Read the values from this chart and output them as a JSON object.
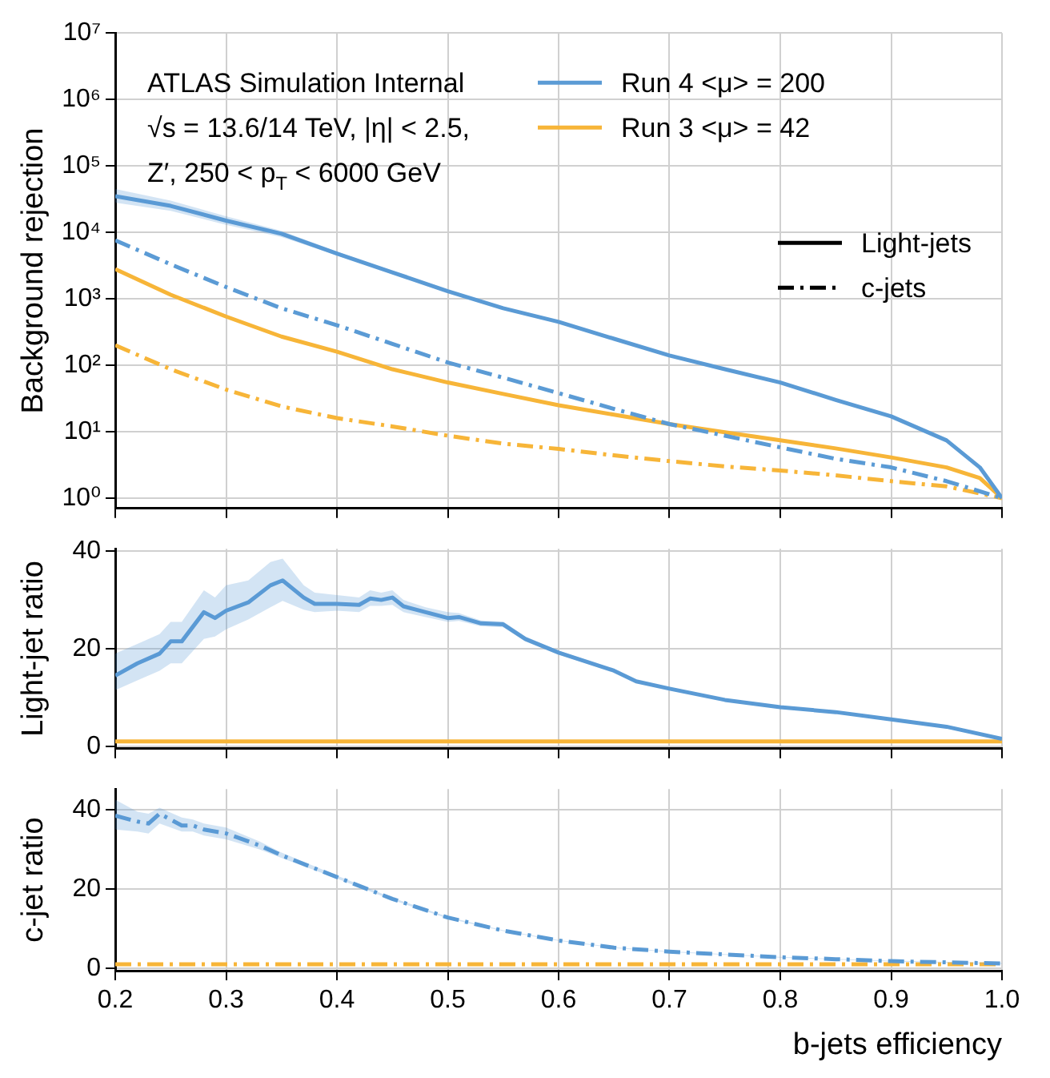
{
  "chart_data": [
    {
      "type": "line",
      "ylabel": "Background rejection",
      "log": "y",
      "grid": true,
      "legend": "top right",
      "tick_labels": "y",
      "xlim": [
        0.2,
        1.0
      ],
      "xticks": [
        0.2,
        0.3,
        0.4,
        0.5,
        0.6,
        0.7,
        0.8,
        0.9,
        1.0
      ],
      "ylim": [
        0.7,
        10000000
      ],
      "yticks": [
        {
          "value": 1,
          "label": "10⁰"
        },
        {
          "value": 10,
          "label": "10¹"
        },
        {
          "value": 100,
          "label": "10²"
        },
        {
          "value": 1000,
          "label": "10³"
        },
        {
          "value": 10000,
          "label": "10⁴"
        },
        {
          "value": 100000,
          "label": "10⁵"
        },
        {
          "value": 1000000,
          "label": "10⁶"
        },
        {
          "value": 10000000,
          "label": "10⁷"
        }
      ],
      "annotations": [
        "ATLAS Simulation Internal",
        "√s = 13.6/14 TeV, |η| < 2.5,",
        "Z′, 250 < p$_{T}$ < 6000 GeV",
        "Light-jets",
        "c-jets"
      ],
      "series": [
        {
          "name": "Run 4 <μ> = 200",
          "color": "#5b9bd5",
          "line_style": "solid",
          "x": [
            0.2,
            0.25,
            0.3,
            0.35,
            0.4,
            0.45,
            0.5,
            0.55,
            0.6,
            0.65,
            0.7,
            0.75,
            0.8,
            0.85,
            0.9,
            0.95,
            0.98,
            1.0
          ],
          "values": [
            35000,
            25000,
            15000,
            9500,
            4800,
            2500,
            1300,
            720,
            450,
            250,
            140,
            87,
            55,
            30,
            17,
            7.4,
            2.9,
            1
          ],
          "lower": [
            28000,
            21000,
            13000,
            8500,
            4500,
            2400,
            1250,
            700,
            440,
            245,
            138,
            86,
            54,
            29.5,
            16.8,
            7.3,
            2.85,
            1
          ],
          "upper": [
            45000,
            30000,
            17500,
            10500,
            5100,
            2600,
            1350,
            740,
            460,
            255,
            142,
            88,
            56,
            30.5,
            17.2,
            7.5,
            2.95,
            1
          ]
        },
        {
          "color": "#5b9bd5",
          "line_style": "dashed",
          "x": [
            0.2,
            0.25,
            0.3,
            0.35,
            0.4,
            0.45,
            0.5,
            0.55,
            0.6,
            0.65,
            0.7,
            0.75,
            0.8,
            0.85,
            0.9,
            0.95,
            1.0
          ],
          "values": [
            7600,
            3300,
            1500,
            720,
            400,
            210,
            110,
            65,
            38,
            22,
            13,
            8.7,
            5.8,
            3.9,
            2.9,
            1.8,
            1
          ]
        },
        {
          "name": "Run 3 <μ> = 42",
          "color": "#f7b538",
          "line_style": "solid",
          "x": [
            0.2,
            0.25,
            0.3,
            0.35,
            0.4,
            0.45,
            0.5,
            0.55,
            0.6,
            0.65,
            0.7,
            0.75,
            0.8,
            0.85,
            0.9,
            0.95,
            0.98,
            1.0
          ],
          "values": [
            2800,
            1150,
            540,
            270,
            160,
            87,
            55,
            37,
            25,
            18,
            13,
            9.8,
            7.4,
            5.6,
            4.1,
            2.9,
            2,
            1
          ]
        },
        {
          "color": "#f7b538",
          "line_style": "dashed",
          "x": [
            0.2,
            0.25,
            0.3,
            0.35,
            0.4,
            0.45,
            0.5,
            0.55,
            0.6,
            0.65,
            0.7,
            0.75,
            0.8,
            0.85,
            0.9,
            0.95,
            1.0
          ],
          "values": [
            200,
            87,
            43,
            24,
            16,
            12,
            8.7,
            6.6,
            5.5,
            4.4,
            3.6,
            3,
            2.6,
            2.2,
            1.8,
            1.5,
            1
          ]
        }
      ]
    },
    {
      "type": "line",
      "ylabel": "Light-jet ratio",
      "grid": true,
      "tick_labels": "y",
      "xlim": [
        0.2,
        1.0
      ],
      "xticks": [
        0.2,
        0.3,
        0.4,
        0.5,
        0.6,
        0.7,
        0.8,
        0.9,
        1.0
      ],
      "ylim": [
        -0.5,
        40.5
      ],
      "yticks": [
        0,
        20,
        40
      ],
      "series": [
        {
          "color": "#5b9bd5",
          "line_style": "solid",
          "x": [
            0.2,
            0.22,
            0.24,
            0.25,
            0.26,
            0.28,
            0.29,
            0.3,
            0.32,
            0.34,
            0.351,
            0.37,
            0.38,
            0.4,
            0.42,
            0.43,
            0.44,
            0.45,
            0.46,
            0.48,
            0.5,
            0.51,
            0.53,
            0.55,
            0.57,
            0.6,
            0.65,
            0.67,
            0.7,
            0.75,
            0.8,
            0.85,
            0.9,
            0.95,
            1.0
          ],
          "values": [
            14.5,
            17,
            19,
            21.5,
            21.5,
            27.5,
            26.3,
            27.8,
            29.5,
            33,
            34,
            30.5,
            29.2,
            29.2,
            29,
            30.3,
            30,
            30.5,
            28.7,
            27.5,
            26.3,
            26.5,
            25.2,
            25,
            22,
            19.2,
            15.5,
            13.3,
            11.8,
            9.5,
            8,
            7,
            5.5,
            4,
            1.5
          ],
          "lower": [
            11.5,
            13.5,
            15.5,
            17,
            17,
            22,
            22.5,
            24,
            26,
            28.5,
            29.8,
            28,
            27.5,
            27.8,
            27.5,
            28.8,
            28.8,
            29,
            27.5,
            26.5,
            25.5,
            25.7,
            24.6,
            24.4,
            21.5,
            18.8,
            15.2,
            13.1,
            11.6,
            9.4,
            7.9,
            6.9,
            5.4,
            3.9,
            1.4
          ],
          "upper": [
            19,
            21,
            23,
            25.5,
            25.5,
            32,
            30.5,
            33,
            34,
            37.8,
            38.5,
            33,
            31.5,
            31,
            30.5,
            32,
            31.5,
            32,
            30,
            28.5,
            27.5,
            27.3,
            25.8,
            25.6,
            22.5,
            19.6,
            15.8,
            13.5,
            12,
            9.6,
            8.1,
            7.1,
            5.6,
            4.1,
            1.6
          ]
        },
        {
          "color": "#f7b538",
          "line_style": "solid",
          "x": [
            0.2,
            1.0
          ],
          "values": [
            1,
            1
          ]
        }
      ]
    },
    {
      "type": "line",
      "ylabel": "c-jet ratio",
      "xlabel": "b-jets efficiency",
      "grid": true,
      "xlim": [
        0.2,
        1.0
      ],
      "xticks": [
        0.2,
        0.3,
        0.4,
        0.5,
        0.6,
        0.7,
        0.8,
        0.9,
        {
          "value": 1.0,
          "label": "1.0"
        }
      ],
      "ylim": [
        -0.6,
        45.2
      ],
      "yticks": [
        0,
        20,
        40
      ],
      "series": [
        {
          "color": "#5b9bd5",
          "line_style": "dashed",
          "x": [
            0.2,
            0.22,
            0.23,
            0.24,
            0.26,
            0.27,
            0.28,
            0.3,
            0.33,
            0.35,
            0.4,
            0.45,
            0.5,
            0.55,
            0.6,
            0.65,
            0.7,
            0.75,
            0.8,
            0.85,
            0.9,
            0.95,
            1.0
          ],
          "values": [
            38.5,
            37,
            36.5,
            39,
            36,
            36,
            35,
            34,
            31,
            28.5,
            23,
            17.5,
            12.8,
            9.5,
            7,
            5.2,
            4.2,
            3.5,
            2.8,
            2.3,
            1.8,
            1.5,
            1.2
          ],
          "lower": [
            35,
            34.5,
            34,
            36.5,
            34.5,
            34.5,
            33.5,
            32.5,
            30,
            27.8,
            22.6,
            17.2,
            12.6,
            9.4,
            6.9,
            5.1,
            4.1,
            3.4,
            2.7,
            2.2,
            1.7,
            1.4,
            1.1
          ],
          "upper": [
            42.5,
            39.5,
            39,
            40.5,
            38,
            37.5,
            36.5,
            35.5,
            32,
            29.2,
            23.4,
            17.8,
            13,
            9.6,
            7.1,
            5.3,
            4.3,
            3.6,
            2.9,
            2.4,
            1.9,
            1.6,
            1.3
          ]
        },
        {
          "color": "#f7b538",
          "line_style": "dashed",
          "x": [
            0.2,
            1.0
          ],
          "values": [
            1,
            1
          ]
        }
      ]
    }
  ]
}
